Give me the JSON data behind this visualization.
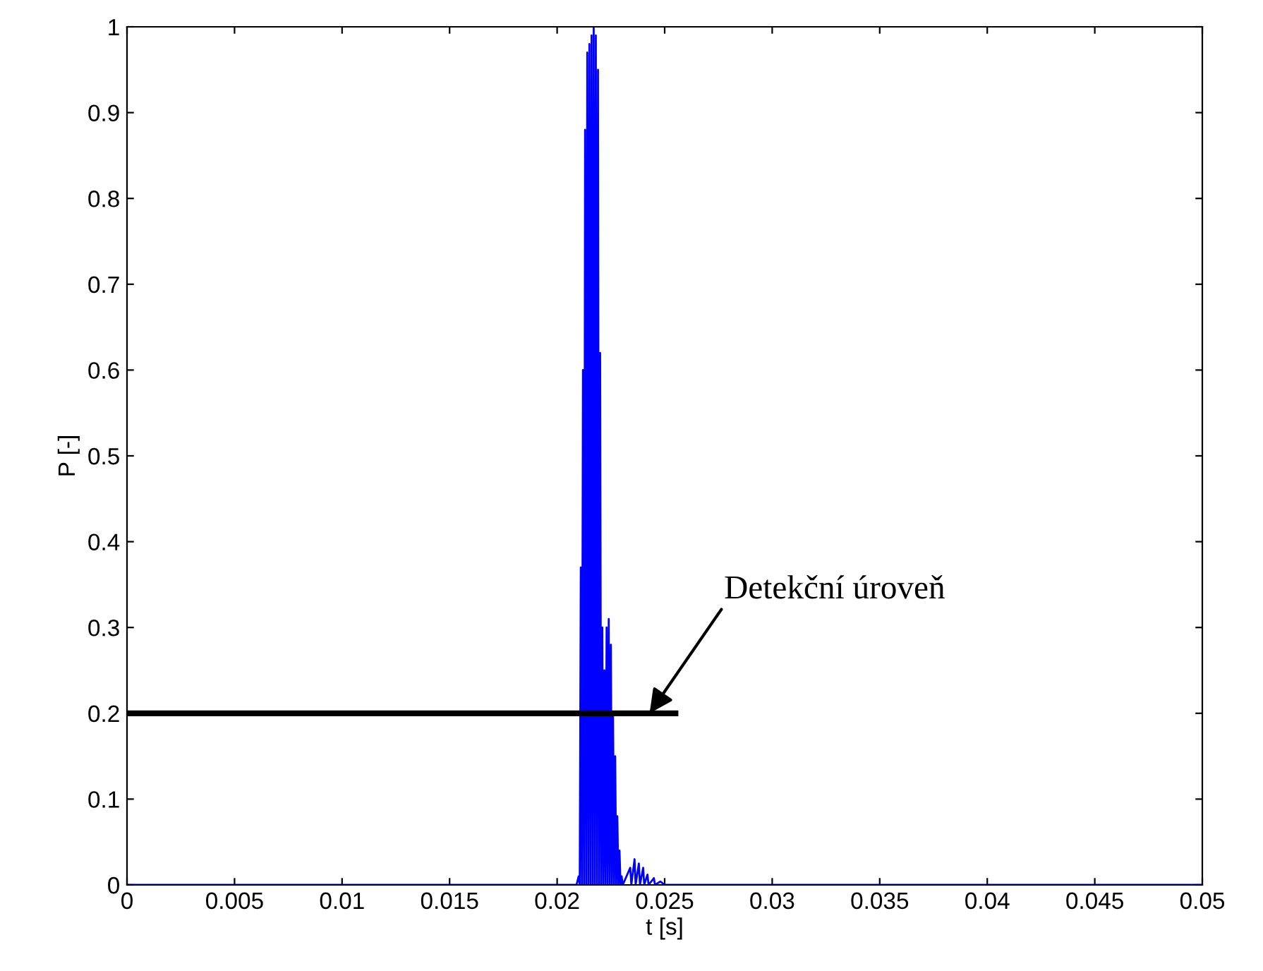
{
  "chart_data": {
    "type": "line",
    "xlabel": "t [s]",
    "ylabel": "P [-]",
    "xlim": [
      0,
      0.05
    ],
    "ylim": [
      0,
      1
    ],
    "xticks": [
      0,
      0.005,
      0.01,
      0.015,
      0.02,
      0.025,
      0.03,
      0.035,
      0.04,
      0.045,
      0.05
    ],
    "yticks": [
      0,
      0.1,
      0.2,
      0.3,
      0.4,
      0.5,
      0.6,
      0.7,
      0.8,
      0.9,
      1
    ],
    "grid": false,
    "legend": false,
    "series": [
      {
        "color": "#0000ff",
        "x": [
          0,
          0.0209,
          0.021,
          0.02105,
          0.0211,
          0.02115,
          0.0212,
          0.02125,
          0.0213,
          0.02135,
          0.0214,
          0.02145,
          0.0215,
          0.02155,
          0.0216,
          0.02165,
          0.0217,
          0.02175,
          0.0218,
          0.02185,
          0.0219,
          0.02195,
          0.022,
          0.02205,
          0.0221,
          0.02215,
          0.0222,
          0.02225,
          0.0223,
          0.02235,
          0.0224,
          0.02245,
          0.0225,
          0.02255,
          0.0226,
          0.02265,
          0.0227,
          0.02275,
          0.0228,
          0.02285,
          0.0229,
          0.02295,
          0.023,
          0.02305,
          0.0234,
          0.02345,
          0.0236,
          0.02365,
          0.0238,
          0.02385,
          0.024,
          0.02405,
          0.0242,
          0.02425,
          0.0245,
          0.02455,
          0.0248,
          0.025,
          0.05
        ],
        "values": [
          0,
          0,
          0.01,
          0,
          0.37,
          0,
          0.6,
          0,
          0.88,
          0,
          0.97,
          0,
          0.98,
          0,
          0.99,
          0,
          1.0,
          0,
          0.99,
          0,
          0.95,
          0,
          0.62,
          0,
          0.3,
          0,
          0.25,
          0,
          0.3,
          0,
          0.31,
          0,
          0.28,
          0,
          0.2,
          0,
          0.15,
          0,
          0.08,
          0,
          0.04,
          0,
          0.01,
          0,
          0.02,
          0,
          0.03,
          0,
          0.025,
          0,
          0.02,
          0,
          0.012,
          0,
          0.008,
          0,
          0.004,
          0,
          0
        ]
      },
      {
        "color": "#000000",
        "x": [
          0,
          0.0255
        ],
        "values": [
          0.2,
          0.2
        ]
      }
    ],
    "annotations": [
      {
        "text": "Detekční úroveň",
        "x": 0.0243,
        "y": 0.2
      }
    ]
  }
}
